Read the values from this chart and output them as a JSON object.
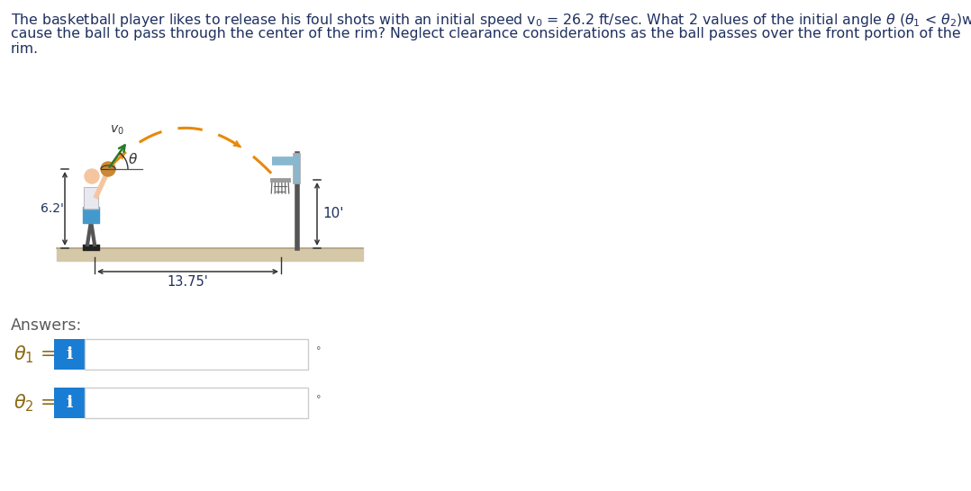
{
  "bg_color": "#ffffff",
  "title_color": "#1f3060",
  "answers_color": "#5a5a5a",
  "theta_label_color": "#8b6914",
  "title_fontsize": 11.3,
  "answers_fontsize": 12.5,
  "theta_label_fontsize": 15,
  "arc_color": "#e8890a",
  "floor_color": "#d4c8a8",
  "floor_edge_color": "#b0a080",
  "pole_color": "#555555",
  "backboard_color": "#88b8d0",
  "backboard_support_color": "#88b8d0",
  "rim_color": "#999999",
  "net_color": "#666666",
  "arrow_color": "#2a7a2a",
  "ball_color": "#cc8833",
  "ball_line_color": "#333333",
  "player_skin": "#f5c5a0",
  "player_shorts": "#4499cc",
  "player_shirt": "#e8e8f0",
  "player_shoe": "#222222",
  "dim_line_color": "#333333",
  "dim_text_color": "#1f3060",
  "input_box_color": "#1a7dd4",
  "degree_symbol": "°",
  "dim_10ft": "10'",
  "dim_6p2ft": "6.2'",
  "dim_13p75ft": "13.75'",
  "answers_label": "Answers:"
}
